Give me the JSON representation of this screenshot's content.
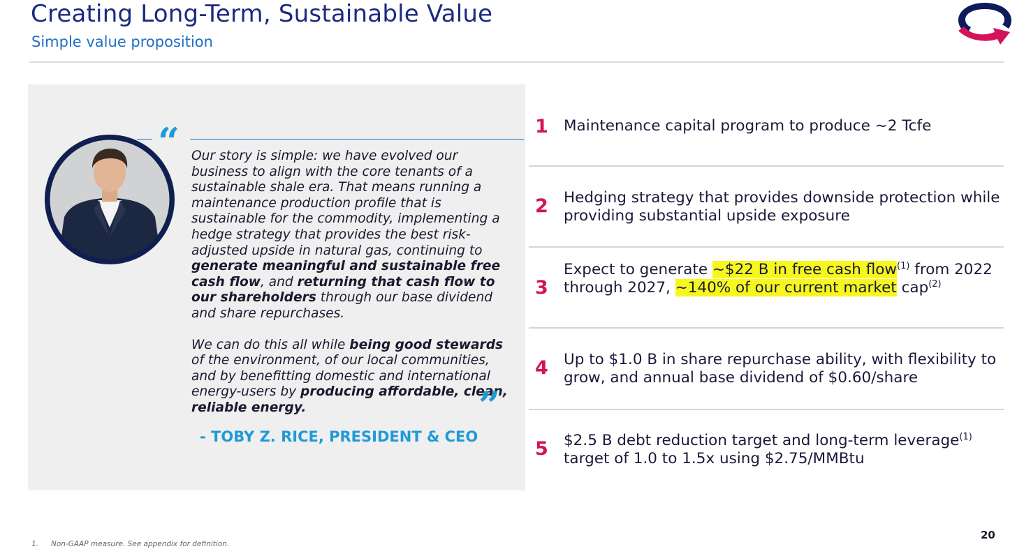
{
  "header": {
    "title": "Creating Long-Term, Sustainable Value",
    "subtitle": "Simple value proposition"
  },
  "quote": {
    "paragraph1": [
      {
        "text": "Our story is simple: we have evolved our business to align with the core tenants of a sustainable shale era. That means running a maintenance production profile that is sustainable for the commodity, implementing a hedge strategy that provides the best risk-adjusted upside in natural gas, continuing to ",
        "bold": false
      },
      {
        "text": "generate meaningful and sustainable free cash flow",
        "bold": true
      },
      {
        "text": ", and ",
        "bold": false
      },
      {
        "text": "returning that cash flow to our shareholders",
        "bold": true
      },
      {
        "text": " through our base dividend and share repurchases.",
        "bold": false
      }
    ],
    "paragraph2": [
      {
        "text": "We can do this all while ",
        "bold": false
      },
      {
        "text": "being good stewards",
        "bold": true
      },
      {
        "text": " of the environment, of our local communities, and by benefitting domestic and international energy-users by ",
        "bold": false
      },
      {
        "text": "producing affordable, clean, reliable energy.",
        "bold": true
      }
    ],
    "attribution": "- TOBY Z. RICE, PRESIDENT & CEO",
    "open_mark": "“",
    "close_mark": "”"
  },
  "points": [
    {
      "num": "1",
      "segments": [
        {
          "text": "Maintenance capital program to produce ~2 Tcfe"
        }
      ]
    },
    {
      "num": "2",
      "segments": [
        {
          "text": "Hedging strategy that provides downside protection while providing substantial upside exposure"
        }
      ]
    },
    {
      "num": "3",
      "segments": [
        {
          "text": "Expect to generate "
        },
        {
          "text": "~$22 B in free cash flow",
          "highlight": true
        },
        {
          "text": "(1)",
          "sup": true
        },
        {
          "text": " from 2022 through 2027, "
        },
        {
          "text": "~140% of our current market",
          "highlight": true
        },
        {
          "text": " cap"
        },
        {
          "text": "(2)",
          "sup": true
        }
      ]
    },
    {
      "num": "4",
      "segments": [
        {
          "text": "Up to $1.0 B in share repurchase ability, with flexibility to grow, and annual base dividend of $0.60/share"
        }
      ]
    },
    {
      "num": "5",
      "segments": [
        {
          "text": "$2.5 B debt reduction target and long-term leverage"
        },
        {
          "text": "(1)",
          "sup": true
        },
        {
          "text": " target of 1.0 to 1.5x using $2.75/MMBtu"
        }
      ]
    }
  ],
  "footer": {
    "footnote_num": "1.",
    "footnote_text": "Non-GAAP measure. See appendix for definition.",
    "page_number": "20"
  },
  "colors": {
    "title": "#1b2a80",
    "subtitle": "#1f6fc4",
    "accent_number": "#d4145a",
    "quote_mark": "#1f9ad6",
    "highlight": "#f7f71e",
    "panel_bg": "#efefef"
  },
  "icons": {
    "logo": "company-logo-icon",
    "portrait": "ceo-portrait-photo"
  }
}
